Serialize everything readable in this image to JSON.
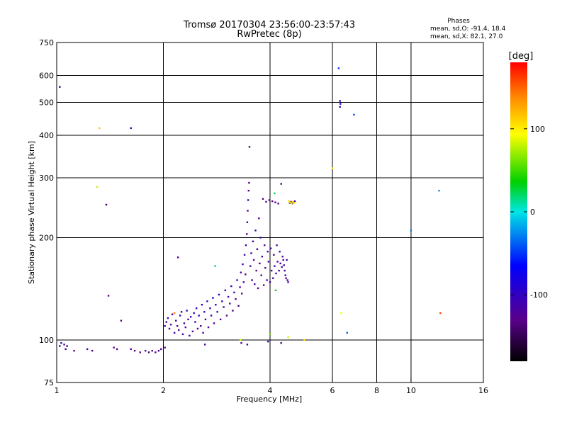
{
  "chart_data": {
    "type": "scatter",
    "title": "Tromsø 20170304 23:56:00-23:57:43",
    "subtitle": "RwPretec (8p)",
    "xlabel": "Frequency [MHz]",
    "ylabel": "Stationary phase Virtual Height [km]",
    "x_scale": "log",
    "y_scale": "log",
    "xlim": [
      1,
      16
    ],
    "ylim": [
      75,
      750
    ],
    "xticks": [
      1,
      2,
      4,
      6,
      8,
      10,
      16
    ],
    "yticks": [
      75,
      100,
      200,
      300,
      400,
      500,
      600,
      750
    ],
    "grid_x": [
      2,
      4,
      6,
      8,
      10
    ],
    "grid_y": [
      100,
      200,
      300,
      400,
      500,
      600
    ],
    "phase_stats": {
      "heading": "Phases",
      "line_o": "mean, sd,O: -91.4, 18.4",
      "line_x": "mean, sd,X:  82.1, 27.0"
    },
    "colorbar": {
      "label": "[deg]",
      "range": [
        -180,
        180
      ],
      "ticks": [
        100,
        0,
        -100
      ],
      "colormap": "rainbow (black-purple-blue-cyan-green-yellow-red)"
    },
    "series": [
      {
        "points": [
          [
            1.02,
            96,
            -115
          ],
          [
            1.03,
            98,
            -110
          ],
          [
            1.05,
            97,
            -120
          ],
          [
            1.06,
            94,
            -125
          ],
          [
            1.07,
            96,
            -118
          ],
          [
            1.12,
            93,
            -130
          ],
          [
            1.22,
            94,
            -120
          ],
          [
            1.26,
            93,
            -125
          ],
          [
            1.45,
            95,
            -130
          ],
          [
            1.48,
            94,
            -125
          ],
          [
            1.62,
            94,
            -120
          ],
          [
            1.66,
            93,
            -130
          ],
          [
            1.72,
            92,
            -125
          ],
          [
            1.78,
            93,
            -120
          ],
          [
            1.82,
            92,
            -135
          ],
          [
            1.86,
            93,
            -125
          ],
          [
            1.9,
            92,
            -130
          ],
          [
            1.94,
            93,
            -120
          ],
          [
            1.97,
            94,
            -125
          ],
          [
            2.02,
            95,
            -120
          ],
          [
            1.02,
            555,
            -115
          ],
          [
            1.62,
            420,
            -100
          ],
          [
            2.62,
            97,
            -110
          ],
          [
            3.32,
            98,
            -120
          ],
          [
            3.45,
            97,
            -115
          ],
          [
            3.95,
            99,
            -110
          ],
          [
            4.3,
            98,
            -120
          ],
          [
            1.38,
            250,
            -140
          ],
          [
            1.4,
            135,
            -130
          ],
          [
            1.52,
            114,
            -125
          ],
          [
            2.02,
            110,
            -120
          ],
          [
            2.04,
            113,
            -115
          ],
          [
            2.06,
            116,
            -110
          ],
          [
            2.08,
            108,
            -125
          ],
          [
            2.1,
            111,
            -120
          ],
          [
            2.12,
            119,
            -115
          ],
          [
            2.15,
            105,
            -118
          ],
          [
            2.17,
            114,
            -112
          ],
          [
            2.19,
            110,
            -125
          ],
          [
            2.21,
            107,
            -130
          ],
          [
            2.23,
            118,
            -110
          ],
          [
            2.25,
            121,
            -100
          ],
          [
            2.27,
            104,
            -115
          ],
          [
            2.29,
            112,
            -120
          ],
          [
            2.31,
            109,
            -125
          ],
          [
            2.33,
            122,
            -105
          ],
          [
            2.35,
            115,
            -115
          ],
          [
            2.37,
            103,
            -120
          ],
          [
            2.39,
            117,
            -110
          ],
          [
            2.42,
            106,
            -125
          ],
          [
            2.44,
            120,
            -100
          ],
          [
            2.46,
            113,
            -115
          ],
          [
            2.48,
            124,
            -95
          ],
          [
            2.5,
            108,
            -120
          ],
          [
            2.52,
            118,
            -110
          ],
          [
            2.55,
            110,
            -125
          ],
          [
            2.57,
            127,
            -100
          ],
          [
            2.59,
            105,
            -115
          ],
          [
            2.61,
            121,
            -110
          ],
          [
            2.63,
            115,
            -120
          ],
          [
            2.66,
            130,
            -95
          ],
          [
            2.68,
            109,
            -118
          ],
          [
            2.71,
            124,
            -105
          ],
          [
            2.73,
            118,
            -115
          ],
          [
            2.76,
            133,
            -90
          ],
          [
            2.78,
            112,
            -120
          ],
          [
            2.81,
            127,
            -110
          ],
          [
            2.84,
            121,
            -115
          ],
          [
            2.87,
            136,
            -95
          ],
          [
            2.9,
            115,
            -125
          ],
          [
            2.93,
            130,
            -110
          ],
          [
            2.96,
            125,
            -120
          ],
          [
            2.99,
            140,
            -100
          ],
          [
            3.02,
            118,
            -130
          ],
          [
            3.05,
            134,
            -115
          ],
          [
            3.08,
            128,
            -125
          ],
          [
            3.11,
            144,
            -110
          ],
          [
            3.14,
            122,
            -135
          ],
          [
            3.17,
            138,
            -120
          ],
          [
            3.2,
            132,
            -130
          ],
          [
            3.23,
            150,
            -115
          ],
          [
            3.26,
            126,
            -140
          ],
          [
            3.29,
            143,
            -125
          ],
          [
            3.31,
            158,
            -120
          ],
          [
            3.33,
            137,
            -130
          ],
          [
            3.35,
            167,
            -115
          ],
          [
            3.37,
            148,
            -125
          ],
          [
            3.39,
            178,
            -120
          ],
          [
            3.41,
            156,
            -130
          ],
          [
            3.42,
            190,
            -115
          ],
          [
            3.44,
            205,
            -120
          ],
          [
            3.45,
            222,
            -125
          ],
          [
            3.46,
            240,
            -120
          ],
          [
            3.47,
            258,
            -115
          ],
          [
            3.48,
            275,
            -125
          ],
          [
            3.49,
            290,
            -120
          ],
          [
            3.5,
            370,
            -130
          ],
          [
            3.52,
            165,
            -125
          ],
          [
            3.54,
            180,
            -120
          ],
          [
            3.56,
            150,
            -135
          ],
          [
            3.58,
            195,
            -115
          ],
          [
            3.6,
            172,
            -125
          ],
          [
            3.62,
            146,
            -130
          ],
          [
            3.64,
            210,
            -120
          ],
          [
            3.66,
            160,
            -125
          ],
          [
            3.68,
            185,
            -115
          ],
          [
            3.7,
            142,
            -130
          ],
          [
            3.72,
            228,
            -120
          ],
          [
            3.74,
            168,
            -125
          ],
          [
            3.76,
            200,
            -115
          ],
          [
            3.78,
            155,
            -130
          ],
          [
            3.8,
            176,
            -120
          ],
          [
            3.82,
            260,
            -125
          ],
          [
            3.84,
            145,
            -135
          ],
          [
            3.86,
            190,
            -120
          ],
          [
            3.88,
            163,
            -125
          ],
          [
            3.9,
            255,
            -130
          ],
          [
            3.92,
            150,
            -120
          ],
          [
            3.94,
            182,
            -115
          ],
          [
            3.96,
            170,
            -125
          ],
          [
            3.98,
            258,
            -130
          ],
          [
            4.0,
            148,
            -120
          ],
          [
            4.02,
            186,
            -115
          ],
          [
            4.04,
            160,
            -125
          ],
          [
            4.06,
            256,
            -130
          ],
          [
            4.08,
            152,
            -120
          ],
          [
            4.1,
            178,
            -125
          ],
          [
            4.12,
            165,
            -115
          ],
          [
            4.14,
            254,
            -130
          ],
          [
            4.16,
            157,
            -120
          ],
          [
            4.18,
            190,
            -125
          ],
          [
            4.2,
            170,
            -115
          ],
          [
            4.22,
            252,
            -130
          ],
          [
            4.24,
            160,
            -120
          ],
          [
            4.26,
            182,
            -125
          ],
          [
            4.28,
            168,
            -115
          ],
          [
            4.3,
            288,
            -130
          ],
          [
            4.32,
            164,
            -120
          ],
          [
            4.34,
            176,
            -125
          ],
          [
            4.36,
            172,
            -115
          ],
          [
            4.38,
            166,
            -120
          ],
          [
            4.4,
            160,
            -125
          ],
          [
            4.42,
            155,
            -120
          ],
          [
            4.44,
            152,
            -130
          ],
          [
            4.46,
            172,
            -115
          ],
          [
            4.48,
            150,
            -125
          ],
          [
            4.5,
            148,
            -120
          ],
          [
            4.52,
            256,
            -125
          ],
          [
            4.55,
            253,
            -120
          ],
          [
            4.58,
            255,
            -130
          ],
          [
            4.62,
            252,
            -125
          ],
          [
            4.66,
            254,
            -120
          ],
          [
            4.7,
            256,
            -115
          ],
          [
            4.52,
            256,
            95
          ],
          [
            4.56,
            254,
            100
          ],
          [
            4.6,
            252,
            90
          ],
          [
            4.64,
            255,
            105
          ],
          [
            4.68,
            253,
            95
          ],
          [
            4.12,
            270,
            20
          ],
          [
            4.0,
            104,
            60
          ],
          [
            4.15,
            140,
            40
          ],
          [
            3.3,
            100,
            80
          ],
          [
            2.8,
            165,
            20
          ],
          [
            2.2,
            175,
            -120
          ],
          [
            2.15,
            120,
            140
          ],
          [
            1.3,
            282,
            80
          ],
          [
            1.32,
            420,
            115
          ],
          [
            6.0,
            320,
            100
          ],
          [
            6.25,
            630,
            -50
          ],
          [
            6.3,
            505,
            -90
          ],
          [
            6.32,
            495,
            -100
          ],
          [
            6.3,
            485,
            -95
          ],
          [
            6.6,
            105,
            -40
          ],
          [
            6.9,
            460,
            -45
          ],
          [
            6.35,
            120,
            90
          ],
          [
            10.0,
            210,
            -30
          ],
          [
            12.0,
            275,
            -25
          ],
          [
            12.1,
            120,
            160
          ],
          [
            4.5,
            102,
            80
          ],
          [
            5.0,
            100,
            110
          ]
        ]
      }
    ]
  }
}
